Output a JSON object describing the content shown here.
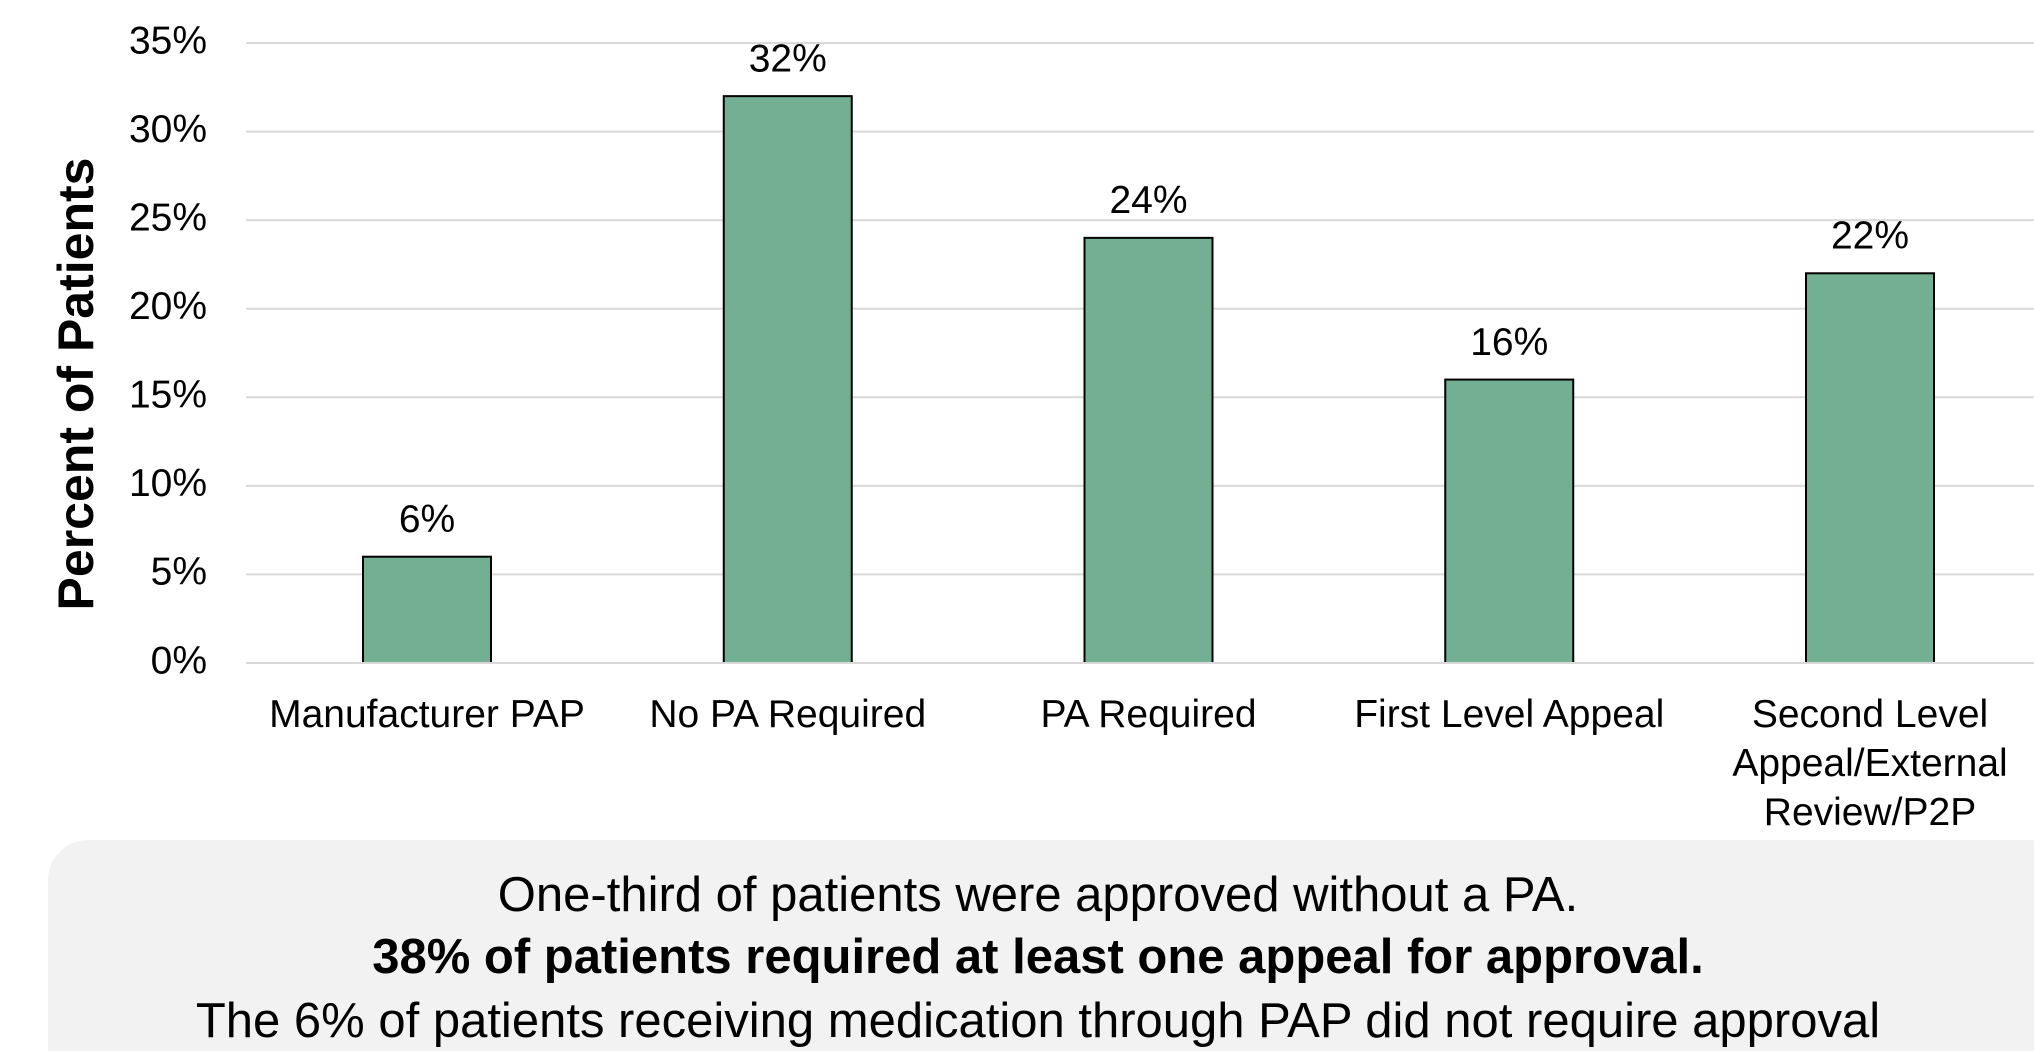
{
  "chart_data": {
    "type": "bar",
    "y_label": "Percent of Patients",
    "categories": [
      "Manufacturer PAP",
      "No PA Required",
      "PA Required",
      "First Level Appeal",
      "Second Level Appeal/External Review/P2P"
    ],
    "values": [
      6,
      32,
      24,
      16,
      22
    ],
    "value_labels": [
      "6%",
      "32%",
      "24%",
      "16%",
      "22%"
    ],
    "color": "#73af92",
    "ylim": [
      0,
      35
    ],
    "yticks": [
      {
        "value": 0,
        "label": "0%"
      },
      {
        "value": 5,
        "label": "5%"
      },
      {
        "value": 10,
        "label": "10%"
      },
      {
        "value": 15,
        "label": "15%"
      },
      {
        "value": 20,
        "label": "20%"
      },
      {
        "value": 25,
        "label": "25%"
      },
      {
        "value": 30,
        "label": "30%"
      },
      {
        "value": 35,
        "label": "35%"
      }
    ],
    "grid": true,
    "annotations": [
      "One-third of patients were approved without a PA.",
      "38% of patients required at least one appeal for approval.",
      "The 6% of patients receiving medication through PAP did not require approval"
    ]
  }
}
